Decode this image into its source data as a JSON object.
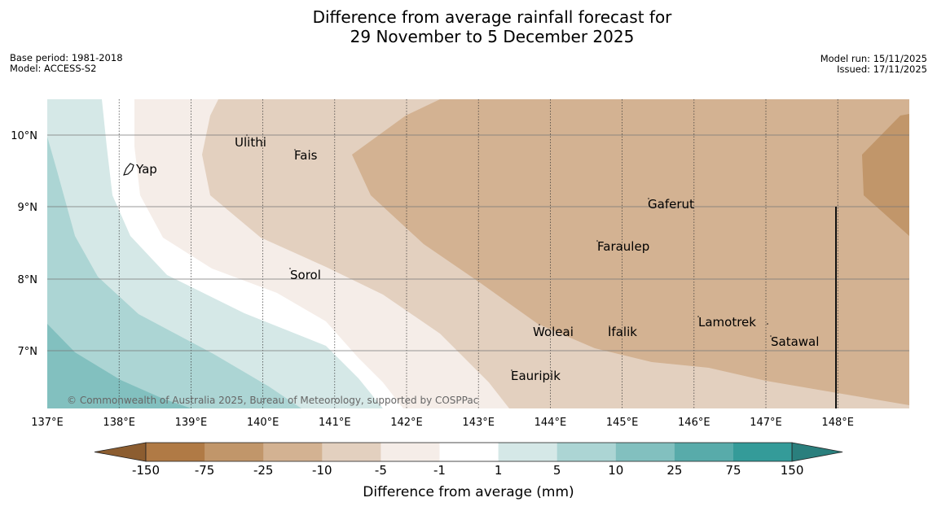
{
  "title": {
    "line1": "Difference from average rainfall forecast for",
    "line2": "29 November to 5 December 2025"
  },
  "meta_left": {
    "base_period": "Base period: 1981-2018",
    "model": "Model: ACCESS-S2"
  },
  "meta_right": {
    "model_run": "Model run: 15/11/2025",
    "issued": "Issued: 17/11/2025"
  },
  "map": {
    "lon_labels": [
      "137°E",
      "138°E",
      "139°E",
      "140°E",
      "141°E",
      "142°E",
      "143°E",
      "144°E",
      "145°E",
      "146°E",
      "147°E",
      "148°E"
    ],
    "lat_labels": [
      "10°N",
      "9°N",
      "8°N",
      "7°N"
    ],
    "places": [
      "Ulithi",
      "Fais",
      "Yap",
      "Gaferut",
      "Faraulep",
      "Sorol",
      "Lamotrek",
      "Woleai",
      "Ifalik",
      "Satawal",
      "Eauripik"
    ],
    "copyright": "© Commonwealth of Australia 2025, Bureau of Meteorology, supported by COSPPac"
  },
  "legend": {
    "title": "Difference from average (mm)",
    "ticks": [
      "-150",
      "-75",
      "-25",
      "-10",
      "-5",
      "-1",
      "1",
      "5",
      "10",
      "25",
      "75",
      "150"
    ],
    "colors": {
      "lt_neg150": "#8c5d30",
      "neg150_neg75": "#b07a45",
      "neg75_neg25": "#c1966a",
      "neg25_neg10": "#d3b292",
      "neg10_neg5": "#e3d0bf",
      "neg5_neg1": "#f5ede8",
      "neg1_1": "#ffffff",
      "1_5": "#d5e8e7",
      "5_10": "#acd5d4",
      "10_25": "#82c0bf",
      "25_75": "#58abaa",
      "75_150": "#349b99",
      "gt_150": "#2a7f7d"
    }
  }
}
